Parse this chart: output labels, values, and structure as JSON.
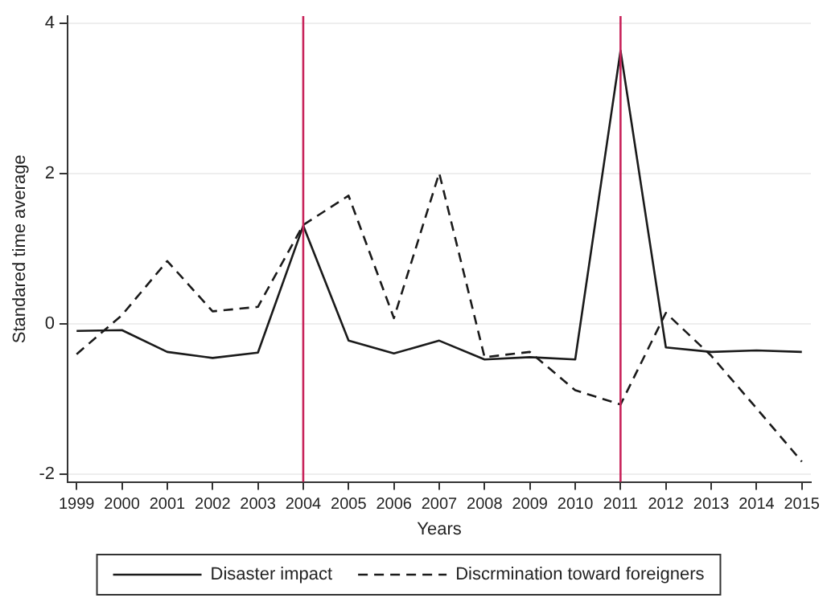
{
  "chart_data": {
    "type": "line",
    "xlabel": "Years",
    "ylabel": "Standared time average",
    "x": [
      1999,
      2000,
      2001,
      2002,
      2003,
      2004,
      2005,
      2006,
      2007,
      2008,
      2009,
      2010,
      2011,
      2012,
      2013,
      2014,
      2015
    ],
    "series": [
      {
        "name": "Disaster impact",
        "color": "#1a1a1a",
        "line_style": "solid",
        "values": [
          -0.09,
          -0.08,
          -0.37,
          -0.45,
          -0.38,
          1.31,
          -0.22,
          -0.39,
          -0.22,
          -0.47,
          -0.44,
          -0.47,
          3.64,
          -0.31,
          -0.37,
          -0.35,
          -0.37
        ]
      },
      {
        "name": "Discrmination toward foreigners",
        "color": "#1a1a1a",
        "line_style": "dashed",
        "values": [
          -0.4,
          0.12,
          0.84,
          0.17,
          0.23,
          1.32,
          1.71,
          0.08,
          2.01,
          -0.44,
          -0.37,
          -0.88,
          -1.07,
          0.15,
          -0.42,
          -1.12,
          -1.83
        ]
      }
    ],
    "xlim": [
      1998.8,
      2015.2
    ],
    "xticks": [
      1999,
      2000,
      2001,
      2002,
      2003,
      2004,
      2005,
      2006,
      2007,
      2008,
      2009,
      2010,
      2011,
      2012,
      2013,
      2014,
      2015
    ],
    "ylim": [
      -2.1,
      4.1
    ],
    "yticks": [
      -2,
      0,
      2,
      4
    ],
    "ref_lines": [
      {
        "axis": "x",
        "value": 2004,
        "color": "#c8235a"
      },
      {
        "axis": "x",
        "value": 2011,
        "color": "#c8235a"
      }
    ],
    "grid": "y",
    "legend": "bottom",
    "marker": "none"
  }
}
